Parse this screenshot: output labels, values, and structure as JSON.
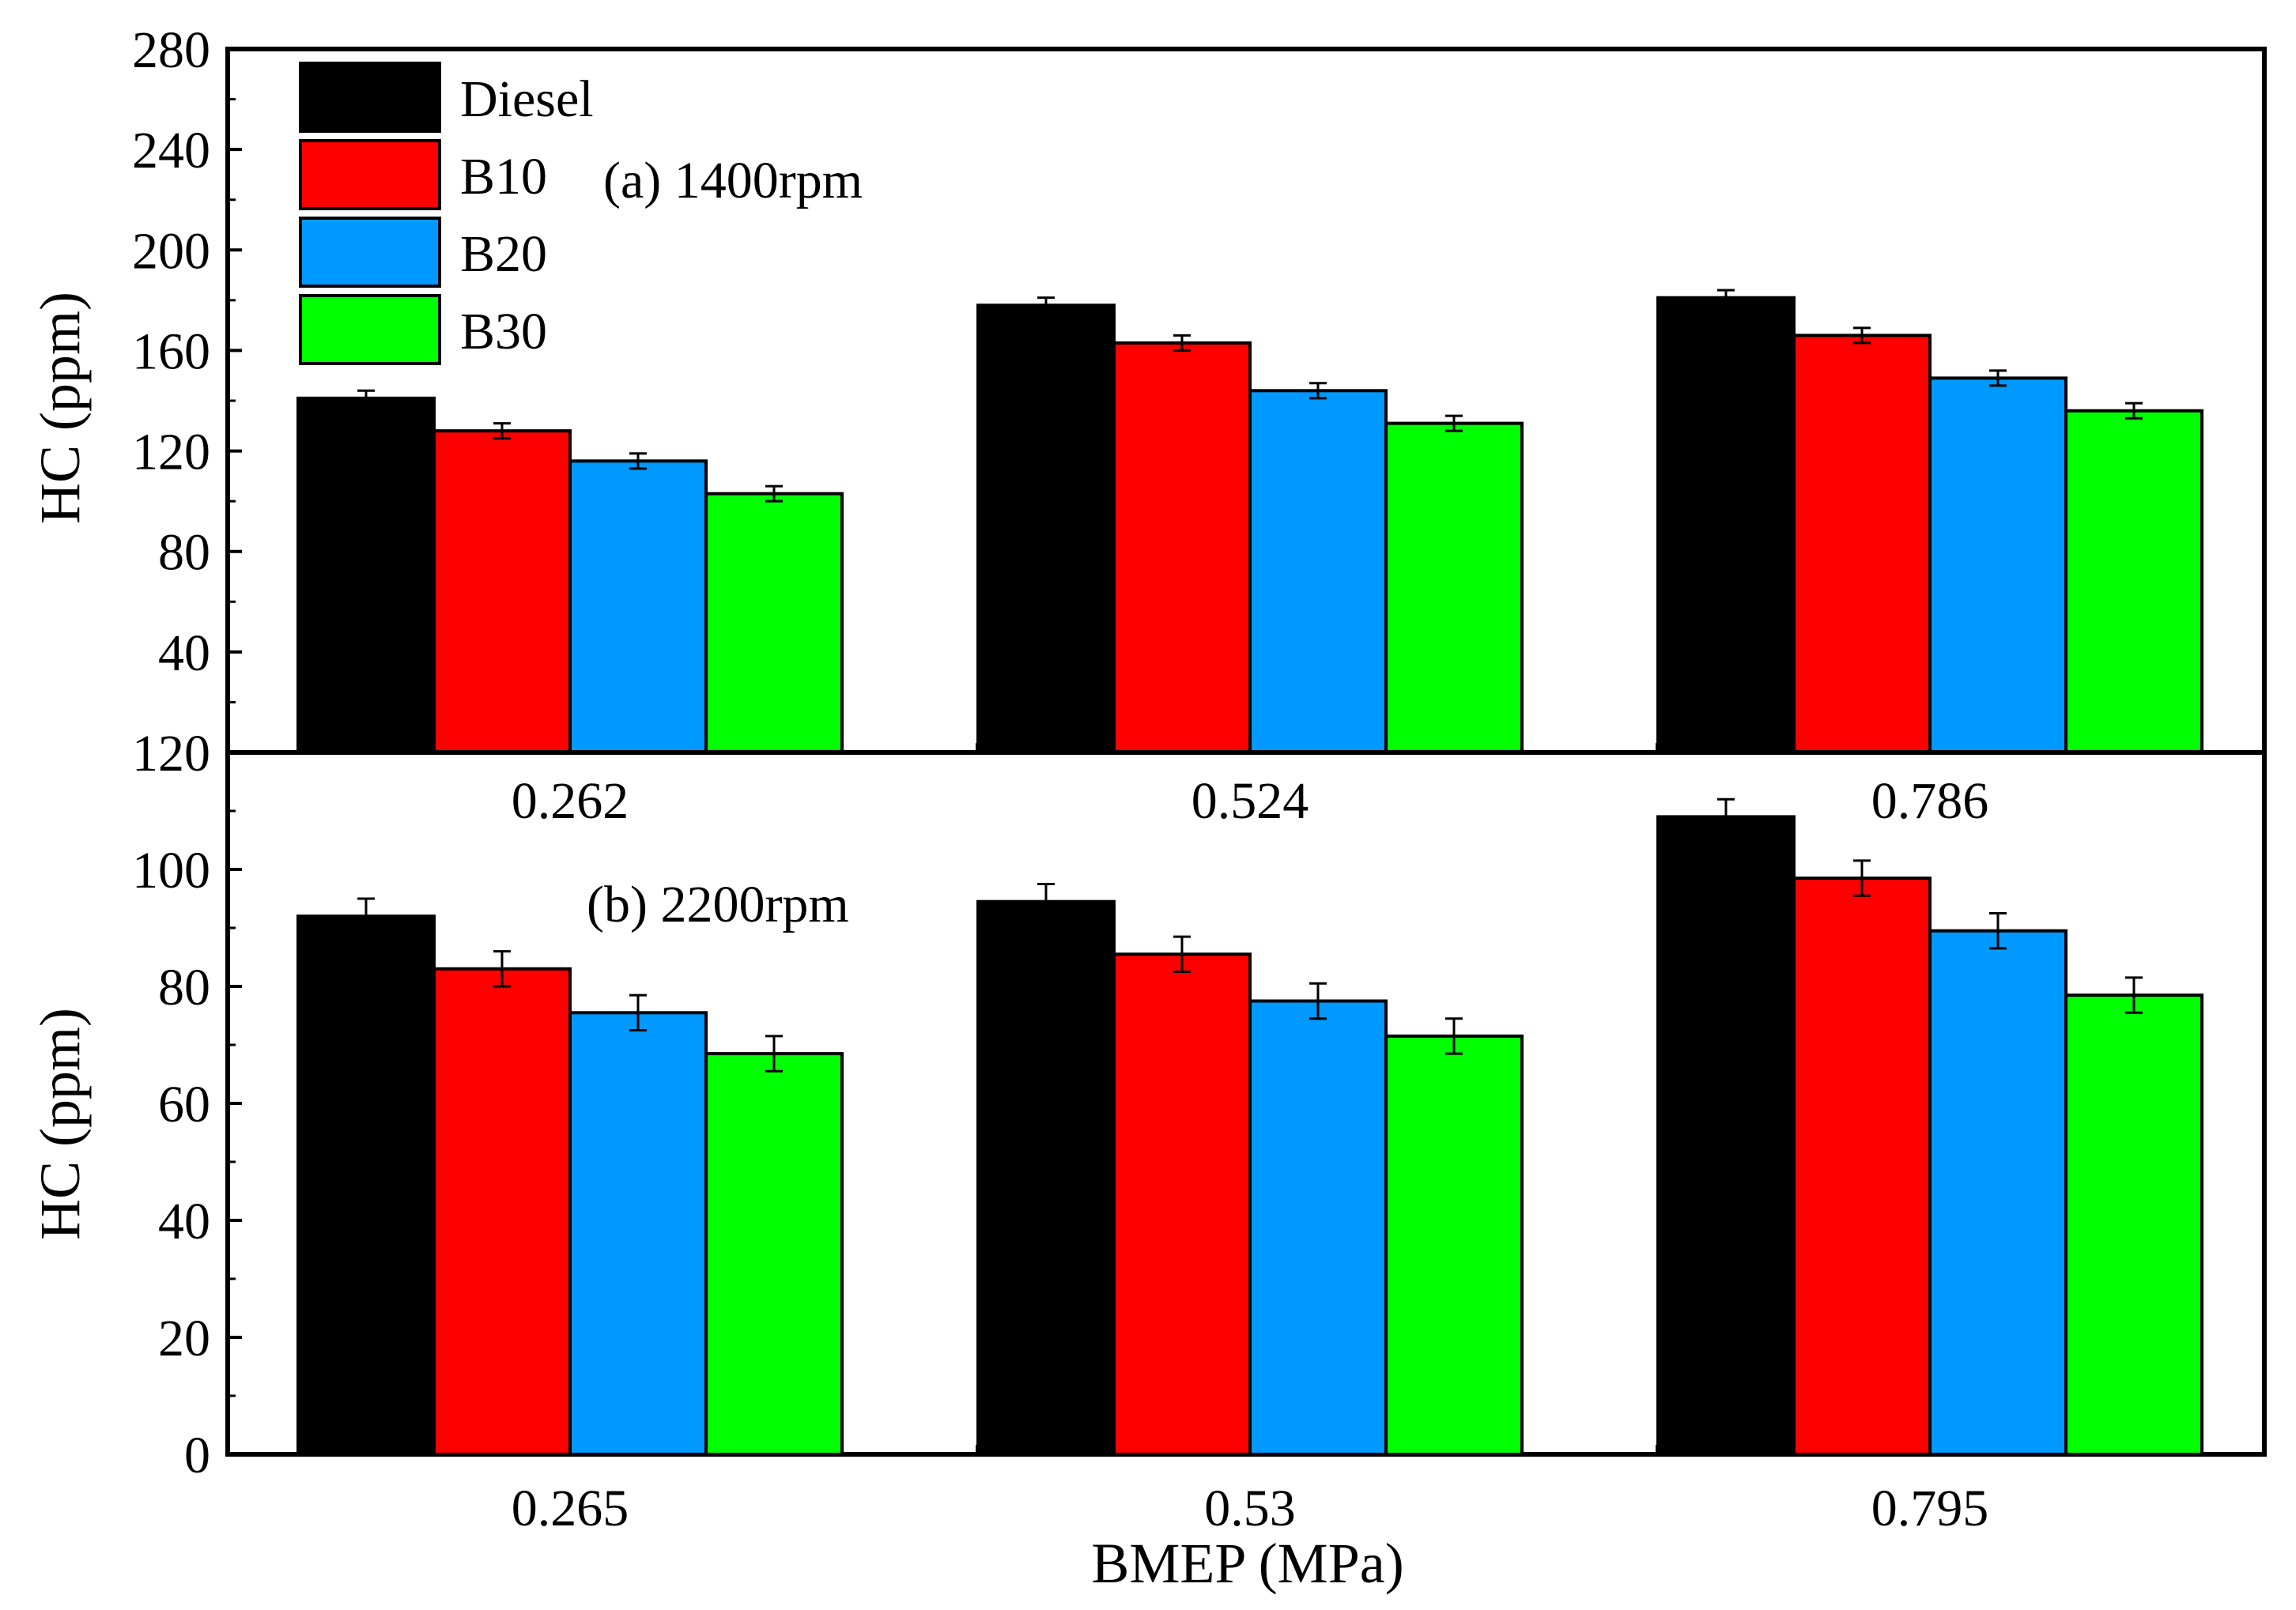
{
  "chart_data": [
    {
      "type": "bar",
      "annotation": "(a) 1400rpm",
      "ylabel": "HC (ppm)",
      "xlabel": "",
      "ylim": [
        0,
        280
      ],
      "yticks": [
        40,
        80,
        120,
        160,
        200,
        240,
        280
      ],
      "bottom_tick_label": "120",
      "categories": [
        "0.262",
        "0.524",
        "0.786"
      ],
      "series": [
        {
          "name": "Diesel",
          "color": "#000000",
          "values": [
            141,
            178,
            181
          ],
          "errors": [
            3,
            3,
            3
          ]
        },
        {
          "name": "B10",
          "color": "#ff0000",
          "values": [
            128,
            163,
            166
          ],
          "errors": [
            3,
            3,
            3
          ]
        },
        {
          "name": "B20",
          "color": "#0099ff",
          "values": [
            116,
            144,
            149
          ],
          "errors": [
            3,
            3,
            3
          ]
        },
        {
          "name": "B30",
          "color": "#00ff00",
          "values": [
            103,
            131,
            136
          ],
          "errors": [
            3,
            3,
            3
          ]
        }
      ]
    },
    {
      "type": "bar",
      "annotation": "(b) 2200rpm",
      "ylabel": "HC (ppm)",
      "xlabel": "BMEP (MPa)",
      "ylim": [
        0,
        120
      ],
      "yticks": [
        0,
        20,
        40,
        60,
        80,
        100
      ],
      "categories": [
        "0.265",
        "0.53",
        "0.795"
      ],
      "series": [
        {
          "name": "Diesel",
          "color": "#000000",
          "values": [
            92,
            94.5,
            109
          ],
          "errors": [
            3,
            3,
            3
          ]
        },
        {
          "name": "B10",
          "color": "#ff0000",
          "values": [
            83,
            85.5,
            98.5
          ],
          "errors": [
            3,
            3,
            3
          ]
        },
        {
          "name": "B20",
          "color": "#0099ff",
          "values": [
            75.5,
            77.5,
            89.5
          ],
          "errors": [
            3,
            3,
            3
          ]
        },
        {
          "name": "B30",
          "color": "#00ff00",
          "values": [
            68.5,
            71.5,
            78.5
          ],
          "errors": [
            3,
            3,
            3
          ]
        }
      ]
    }
  ],
  "legend": {
    "items": [
      {
        "label": "Diesel",
        "color": "#000000"
      },
      {
        "label": "B10",
        "color": "#ff0000"
      },
      {
        "label": "B20",
        "color": "#0099ff"
      },
      {
        "label": "B30",
        "color": "#00ff00"
      }
    ]
  }
}
